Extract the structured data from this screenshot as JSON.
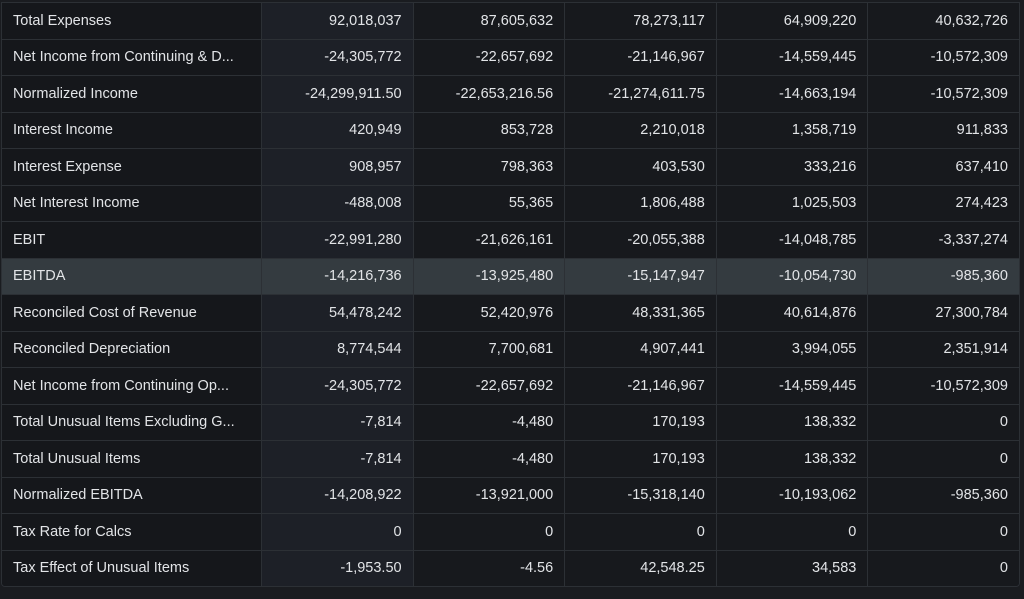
{
  "rows": [
    {
      "label": "Total Expenses",
      "values": [
        "92,018,037",
        "87,605,632",
        "78,273,117",
        "64,909,220",
        "40,632,726"
      ]
    },
    {
      "label": "Net Income from Continuing & D...",
      "values": [
        "-24,305,772",
        "-22,657,692",
        "-21,146,967",
        "-14,559,445",
        "-10,572,309"
      ]
    },
    {
      "label": "Normalized Income",
      "values": [
        "-24,299,911.50",
        "-22,653,216.56",
        "-21,274,611.75",
        "-14,663,194",
        "-10,572,309"
      ]
    },
    {
      "label": "Interest Income",
      "values": [
        "420,949",
        "853,728",
        "2,210,018",
        "1,358,719",
        "911,833"
      ]
    },
    {
      "label": "Interest Expense",
      "values": [
        "908,957",
        "798,363",
        "403,530",
        "333,216",
        "637,410"
      ]
    },
    {
      "label": "Net Interest Income",
      "values": [
        "-488,008",
        "55,365",
        "1,806,488",
        "1,025,503",
        "274,423"
      ]
    },
    {
      "label": "EBIT",
      "values": [
        "-22,991,280",
        "-21,626,161",
        "-20,055,388",
        "-14,048,785",
        "-3,337,274"
      ]
    },
    {
      "label": "EBITDA",
      "values": [
        "-14,216,736",
        "-13,925,480",
        "-15,147,947",
        "-10,054,730",
        "-985,360"
      ],
      "highlighted": true
    },
    {
      "label": "Reconciled Cost of Revenue",
      "values": [
        "54,478,242",
        "52,420,976",
        "48,331,365",
        "40,614,876",
        "27,300,784"
      ]
    },
    {
      "label": "Reconciled Depreciation",
      "values": [
        "8,774,544",
        "7,700,681",
        "4,907,441",
        "3,994,055",
        "2,351,914"
      ]
    },
    {
      "label": "Net Income from Continuing Op...",
      "values": [
        "-24,305,772",
        "-22,657,692",
        "-21,146,967",
        "-14,559,445",
        "-10,572,309"
      ]
    },
    {
      "label": "Total Unusual Items Excluding G...",
      "values": [
        "-7,814",
        "-4,480",
        "170,193",
        "138,332",
        "0"
      ]
    },
    {
      "label": "Total Unusual Items",
      "values": [
        "-7,814",
        "-4,480",
        "170,193",
        "138,332",
        "0"
      ]
    },
    {
      "label": "Normalized EBITDA",
      "values": [
        "-14,208,922",
        "-13,921,000",
        "-15,318,140",
        "-10,193,062",
        "-985,360"
      ]
    },
    {
      "label": "Tax Rate for Calcs",
      "values": [
        "0",
        "0",
        "0",
        "0",
        "0"
      ]
    },
    {
      "label": "Tax Effect of Unusual Items",
      "values": [
        "-1,953.50",
        "-4.56",
        "42,548.25",
        "34,583",
        "0"
      ]
    }
  ]
}
